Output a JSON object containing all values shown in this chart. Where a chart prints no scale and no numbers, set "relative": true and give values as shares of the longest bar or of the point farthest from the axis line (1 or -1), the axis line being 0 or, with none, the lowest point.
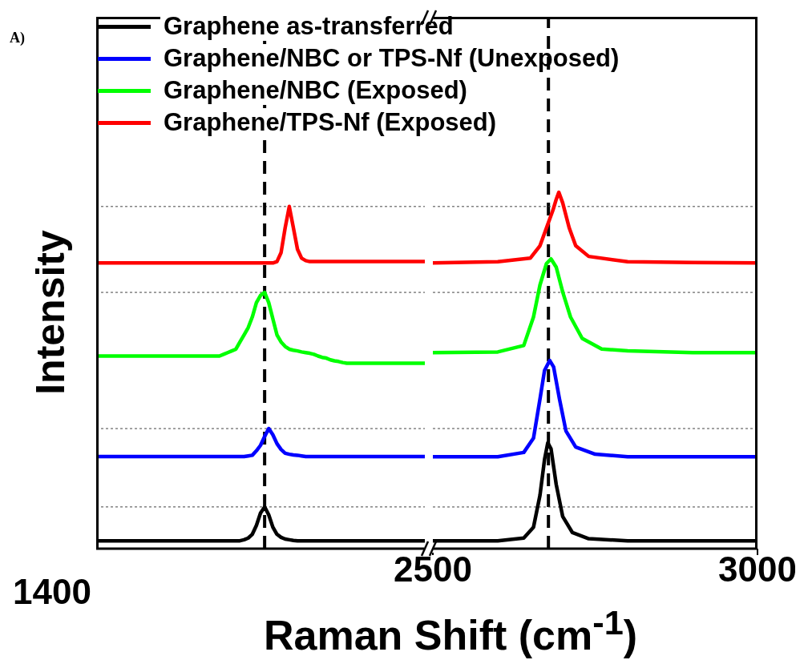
{
  "chart_data": [
    {
      "type": "line",
      "relative": true,
      "ylabel": "Intensity",
      "xlabel": "Raman Shift (cm$^{-1}$)",
      "annotations": [
        "A)",
        "1400"
      ],
      "legend": "top",
      "categories": [
        null,
        null,
        null,
        null,
        null,
        null,
        null,
        null,
        null,
        null,
        null,
        null,
        null,
        null,
        null,
        null,
        null,
        null,
        null,
        null,
        null,
        null,
        null,
        null,
        null,
        null,
        null,
        null,
        null,
        null,
        null,
        null,
        null,
        null,
        null,
        null,
        null,
        null,
        null,
        null,
        null,
        null,
        null,
        null,
        null,
        null,
        null,
        null,
        null,
        null,
        null,
        null,
        null,
        null,
        null,
        null,
        null,
        null,
        null,
        null,
        null,
        null,
        null,
        null,
        null,
        null,
        null,
        null,
        null,
        null,
        null,
        null,
        null,
        null,
        null,
        null,
        null,
        null,
        null,
        null,
        null
      ],
      "ref_lines": [
        {
          "axis": "y",
          "value": 1
        },
        {
          "axis": "y",
          "value": 0.749
        },
        {
          "axis": "y",
          "value": 0.351
        },
        {
          "axis": "y",
          "value": 0.122
        }
      ],
      "series": [
        {
          "name": "Graphene as-transferred",
          "color": "#000000",
          "values": [
            0.023,
            0.023,
            0.023,
            0.023,
            0.023,
            0.023,
            0.023,
            0.023,
            0.023,
            0.023,
            0.023,
            0.023,
            0.023,
            0.023,
            0.023,
            0.023,
            0.023,
            0.023,
            0.023,
            0.023,
            0.023,
            0.023,
            0.023,
            0.023,
            0.023,
            0.023,
            0.023,
            0.023,
            0.023,
            0.023,
            0.023,
            0.023,
            0.023,
            0.023,
            0.023,
            0.023,
            0.026,
            0.031,
            0.042,
            0.068,
            0.104,
            0.122,
            0.099,
            0.063,
            0.042,
            0.033,
            0.028,
            0.026,
            0.024,
            0.023,
            0.023,
            0.023,
            0.023,
            0.023,
            0.023,
            0.023,
            0.023,
            0.023,
            0.023,
            0.023,
            0.023,
            0.023,
            0.023,
            0.023,
            0.023,
            0.023,
            0.023,
            0.023,
            0.023,
            0.023,
            0.023,
            0.023,
            0.023,
            0.023,
            0.023,
            0.023,
            0.023,
            0.023,
            0.023,
            0.023,
            0.023
          ]
        },
        {
          "name": "Graphene/NBC or TPS-Nf (Unexposed)",
          "color": "#0000ff",
          "values": [
            0.269,
            0.269,
            0.269,
            0.269,
            0.269,
            0.269,
            0.269,
            0.269,
            0.269,
            0.269,
            0.269,
            0.269,
            0.269,
            0.269,
            0.269,
            0.269,
            0.269,
            0.269,
            0.269,
            0.269,
            0.269,
            0.269,
            0.269,
            0.269,
            0.269,
            0.269,
            0.269,
            0.269,
            0.269,
            0.269,
            0.269,
            0.269,
            0.269,
            0.269,
            0.269,
            0.269,
            0.269,
            0.271,
            0.273,
            0.286,
            0.302,
            0.328,
            0.351,
            0.333,
            0.307,
            0.29,
            0.279,
            0.276,
            0.274,
            0.273,
            0.271,
            0.269,
            0.269,
            0.269,
            0.269,
            0.269,
            0.269,
            0.269,
            0.269,
            0.269,
            0.269,
            0.269,
            0.269,
            0.269,
            0.269,
            0.269,
            0.269,
            0.269,
            0.269,
            0.269,
            0.269,
            0.269,
            0.269,
            0.269,
            0.269,
            0.269,
            0.269,
            0.269,
            0.269,
            0.269,
            0.269
          ]
        },
        {
          "name": "Graphene/NBC (Exposed)",
          "color": "#00ff00",
          "values": [
            0.563,
            0.563,
            0.563,
            0.563,
            0.563,
            0.563,
            0.563,
            0.563,
            0.563,
            0.563,
            0.563,
            0.563,
            0.563,
            0.563,
            0.563,
            0.563,
            0.563,
            0.563,
            0.563,
            0.563,
            0.563,
            0.563,
            0.563,
            0.563,
            0.563,
            0.563,
            0.563,
            0.563,
            0.563,
            0.563,
            0.563,
            0.568,
            0.573,
            0.578,
            0.583,
            0.604,
            0.625,
            0.646,
            0.677,
            0.719,
            0.74,
            0.749,
            0.719,
            0.672,
            0.625,
            0.604,
            0.591,
            0.583,
            0.58,
            0.578,
            0.575,
            0.573,
            0.571,
            0.568,
            0.563,
            0.559,
            0.557,
            0.552,
            0.549,
            0.547,
            0.544,
            0.542,
            0.542,
            0.542,
            0.542,
            0.542,
            0.542,
            0.542,
            0.542,
            0.542,
            0.542,
            0.542,
            0.542,
            0.542,
            0.542,
            0.542,
            0.542,
            0.542,
            0.542,
            0.542,
            0.542
          ]
        },
        {
          "name": "Graphene/TPS-Nf (Exposed)",
          "color": "#ff0000",
          "values": [
            0.835,
            0.835,
            0.835,
            0.835,
            0.835,
            0.835,
            0.835,
            0.835,
            0.835,
            0.835,
            0.835,
            0.835,
            0.835,
            0.835,
            0.835,
            0.835,
            0.835,
            0.835,
            0.835,
            0.835,
            0.835,
            0.835,
            0.835,
            0.835,
            0.835,
            0.835,
            0.835,
            0.835,
            0.835,
            0.835,
            0.835,
            0.835,
            0.835,
            0.835,
            0.835,
            0.835,
            0.835,
            0.835,
            0.835,
            0.835,
            0.835,
            0.835,
            0.835,
            0.835,
            0.839,
            0.865,
            0.938,
            1,
            0.938,
            0.875,
            0.849,
            0.842,
            0.839,
            0.839,
            0.839,
            0.839,
            0.839,
            0.839,
            0.839,
            0.839,
            0.839,
            0.839,
            0.839,
            0.839,
            0.839,
            0.839,
            0.839,
            0.839,
            0.839,
            0.839,
            0.839,
            0.839,
            0.839,
            0.839,
            0.839,
            0.839,
            0.839,
            0.839,
            0.839,
            0.839,
            0.839
          ]
        }
      ]
    },
    {
      "type": "line",
      "relative": true,
      "tick_labels": "x",
      "xlim": [
        2500,
        3000
      ],
      "xticks": [
        2500,
        3000
      ],
      "ref_lines": [
        {
          "axis": "x",
          "value": 2678
        },
        {
          "axis": "y",
          "value": 0.96
        },
        {
          "axis": "y",
          "value": 0.719
        },
        {
          "axis": "y",
          "value": 0.337
        },
        {
          "axis": "y",
          "value": 0.117
        }
      ],
      "series": [
        {
          "color": "#000000",
          "x": [
            2500,
            2600,
            2640,
            2655,
            2665,
            2672,
            2677,
            2682,
            2690,
            2700,
            2715,
            2740,
            2800,
            2900,
            3000
          ],
          "values": [
            0.022,
            0.022,
            0.03,
            0.06,
            0.15,
            0.25,
            0.297,
            0.28,
            0.18,
            0.09,
            0.045,
            0.028,
            0.022,
            0.022,
            0.022
          ]
        },
        {
          "color": "#0000ff",
          "x": [
            2500,
            2600,
            2640,
            2655,
            2665,
            2672,
            2680,
            2686,
            2695,
            2705,
            2720,
            2750,
            2800,
            2900,
            3000
          ],
          "values": [
            0.258,
            0.258,
            0.27,
            0.31,
            0.42,
            0.5,
            0.528,
            0.51,
            0.42,
            0.33,
            0.285,
            0.265,
            0.258,
            0.258,
            0.258
          ]
        },
        {
          "color": "#00ff00",
          "x": [
            2500,
            2600,
            2640,
            2655,
            2665,
            2675,
            2682,
            2690,
            2700,
            2712,
            2730,
            2760,
            2800,
            2900,
            3000
          ],
          "values": [
            0.55,
            0.552,
            0.57,
            0.65,
            0.74,
            0.8,
            0.813,
            0.79,
            0.72,
            0.65,
            0.59,
            0.56,
            0.555,
            0.55,
            0.55
          ]
        },
        {
          "color": "#ff0000",
          "x": [
            2500,
            2600,
            2650,
            2665,
            2675,
            2685,
            2690,
            2694,
            2700,
            2710,
            2720,
            2740,
            2800,
            2900,
            3000
          ],
          "values": [
            0.802,
            0.805,
            0.815,
            0.85,
            0.9,
            0.95,
            0.98,
            1.0,
            0.97,
            0.9,
            0.85,
            0.82,
            0.805,
            0.803,
            0.802
          ]
        }
      ]
    }
  ]
}
